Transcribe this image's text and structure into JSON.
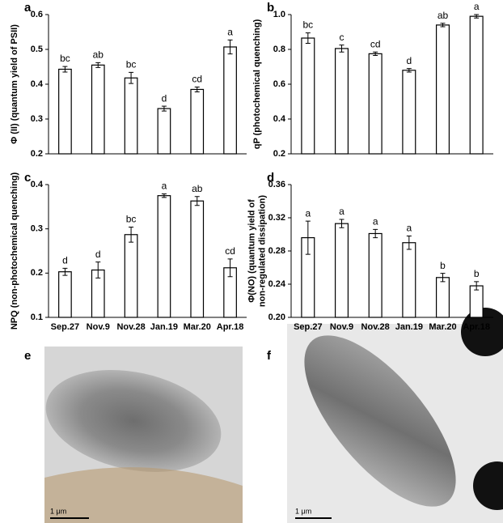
{
  "chart_data": [
    {
      "type": "bar",
      "panel": "a",
      "ylabel": [
        "Φ (II) (quantum yield of PSII)"
      ],
      "categories": [
        null,
        null,
        null,
        null,
        null,
        null
      ],
      "values": [
        0.443,
        0.455,
        0.418,
        0.33,
        0.385,
        0.507
      ],
      "errors": [
        0.008,
        0.007,
        0.016,
        0.007,
        0.007,
        0.02
      ],
      "letters": [
        "bc",
        "ab",
        "bc",
        "d",
        "cd",
        "a"
      ],
      "ylim": [
        0.2,
        0.6
      ],
      "yticks": [
        0.2,
        0.3,
        0.4,
        0.5,
        0.6
      ],
      "color": "#ffffff"
    },
    {
      "type": "bar",
      "panel": "b",
      "ylabel": [
        "qP (photochemical quenching)"
      ],
      "categories": [
        null,
        null,
        null,
        null,
        null,
        null
      ],
      "values": [
        0.865,
        0.805,
        0.775,
        0.68,
        0.94,
        0.99
      ],
      "errors": [
        0.03,
        0.02,
        0.01,
        0.01,
        0.01,
        0.01
      ],
      "letters": [
        "bc",
        "c",
        "cd",
        "d",
        "ab",
        "a"
      ],
      "ylim": [
        0.2,
        1
      ],
      "yticks": [
        0.2,
        0.4,
        0.6,
        0.8,
        {
          "value": 1,
          "label": "1.0"
        }
      ],
      "color": "#ffffff"
    },
    {
      "type": "bar",
      "panel": "c",
      "ylabel": [
        "NPQ (non-photochemical quenching)"
      ],
      "categories": [
        "Sep.27",
        "Nov.9",
        "Nov.28",
        "Jan.19",
        "Mar.20",
        "Apr.18"
      ],
      "values": [
        0.203,
        0.207,
        0.287,
        0.375,
        0.363,
        0.212
      ],
      "errors": [
        0.008,
        0.018,
        0.017,
        0.004,
        0.01,
        0.02
      ],
      "letters": [
        "d",
        "d",
        "bc",
        "a",
        "ab",
        "cd"
      ],
      "ylim": [
        0.1,
        0.4
      ],
      "yticks": [
        0.1,
        0.2,
        0.3,
        0.4
      ],
      "color": "#ffffff"
    },
    {
      "type": "bar",
      "panel": "d",
      "ylabel": [
        "Φ(NO) (quantum yield of",
        "non-regulated dissipation)"
      ],
      "categories": [
        "Sep.27",
        "Nov.9",
        "Nov.28",
        "Jan.19",
        "Mar.20",
        "Apr.18"
      ],
      "values": [
        0.296,
        0.313,
        0.301,
        0.29,
        0.248,
        0.238
      ],
      "errors": [
        0.02,
        0.005,
        0.005,
        0.008,
        0.005,
        0.005
      ],
      "letters": [
        "a",
        "a",
        "a",
        "a",
        "b",
        "b"
      ],
      "ylim": [
        0.2,
        0.36
      ],
      "yticks": [
        {
          "value": 0.2,
          "label": "0.20"
        },
        0.24,
        0.28,
        0.32,
        0.36
      ],
      "color": "#ffffff"
    }
  ],
  "micrographs": [
    {
      "panel": "e",
      "scale": "1 μm"
    },
    {
      "panel": "f",
      "scale": "1 μm"
    }
  ]
}
